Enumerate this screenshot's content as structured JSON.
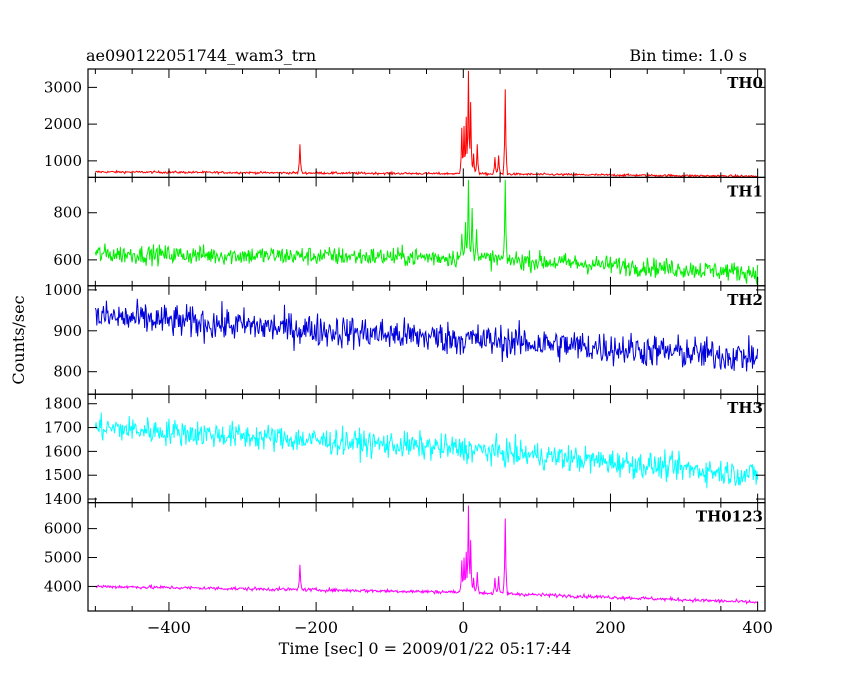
{
  "header": {
    "obs_id": "ae090122051744_wam3_trn",
    "bin_time": "Bin time: 1.0 s"
  },
  "chart_data": {
    "type": "line",
    "xlabel": "Time [sec] 0 = 2009/01/22 05:17:44",
    "ylabel": "Counts/sec",
    "xlim": [
      -510,
      410
    ],
    "x_ticks": [
      -400,
      -200,
      0,
      200,
      400
    ],
    "x_tick_labels": [
      "−400",
      "−200",
      "0",
      "200",
      "400"
    ],
    "grid": false,
    "panels": [
      {
        "name": "TH0",
        "color": "#ff0000",
        "ylim": [
          550,
          3500
        ],
        "y_ticks": [
          1000,
          2000,
          3000
        ],
        "y_tick_labels": [
          "1000",
          "2000",
          "3000"
        ],
        "baseline": [
          [
            -500,
            700
          ],
          [
            0,
            650
          ],
          [
            400,
            580
          ]
        ],
        "noise": 30,
        "spikes": [
          [
            -222,
            1450
          ],
          [
            -2,
            1900
          ],
          [
            1,
            1950
          ],
          [
            4,
            2200
          ],
          [
            7,
            3450
          ],
          [
            10,
            2600
          ],
          [
            14,
            1200
          ],
          [
            19,
            1450
          ],
          [
            43,
            1100
          ],
          [
            48,
            1150
          ],
          [
            57,
            2950
          ]
        ]
      },
      {
        "name": "TH1",
        "color": "#00ee00",
        "ylim": [
          490,
          950
        ],
        "y_ticks": [
          600,
          800
        ],
        "y_tick_labels": [
          "600",
          "800"
        ],
        "baseline": [
          [
            -500,
            625
          ],
          [
            0,
            610
          ],
          [
            400,
            545
          ]
        ],
        "noise": 40,
        "spikes": [
          [
            -2,
            710
          ],
          [
            3,
            760
          ],
          [
            7,
            940
          ],
          [
            12,
            820
          ],
          [
            18,
            730
          ],
          [
            57,
            940
          ]
        ]
      },
      {
        "name": "TH2",
        "color": "#0000dd",
        "ylim": [
          745,
          1010
        ],
        "y_ticks": [
          800,
          900,
          1000
        ],
        "y_tick_labels": [
          "800",
          "900",
          "1000"
        ],
        "baseline": [
          [
            -500,
            935
          ],
          [
            0,
            880
          ],
          [
            400,
            835
          ]
        ],
        "noise": 40,
        "spikes": []
      },
      {
        "name": "TH3",
        "color": "#00ffff",
        "ylim": [
          1385,
          1840
        ],
        "y_ticks": [
          1400,
          1500,
          1600,
          1700,
          1800
        ],
        "y_tick_labels": [
          "1400",
          "1500",
          "1600",
          "1700",
          "1800"
        ],
        "baseline": [
          [
            -500,
            1700
          ],
          [
            0,
            1610
          ],
          [
            400,
            1500
          ]
        ],
        "noise": 55,
        "spikes": []
      },
      {
        "name": "TH0123",
        "color": "#ff00ff",
        "ylim": [
          3150,
          6900
        ],
        "y_ticks": [
          4000,
          5000,
          6000
        ],
        "y_tick_labels": [
          "4000",
          "5000",
          "6000"
        ],
        "baseline": [
          [
            -500,
            4000
          ],
          [
            0,
            3800
          ],
          [
            400,
            3450
          ]
        ],
        "noise": 60,
        "spikes": [
          [
            -222,
            4750
          ],
          [
            -2,
            4900
          ],
          [
            1,
            5000
          ],
          [
            4,
            5200
          ],
          [
            7,
            6800
          ],
          [
            10,
            5600
          ],
          [
            14,
            4300
          ],
          [
            19,
            4500
          ],
          [
            43,
            4300
          ],
          [
            48,
            4350
          ],
          [
            57,
            6350
          ]
        ]
      }
    ]
  }
}
